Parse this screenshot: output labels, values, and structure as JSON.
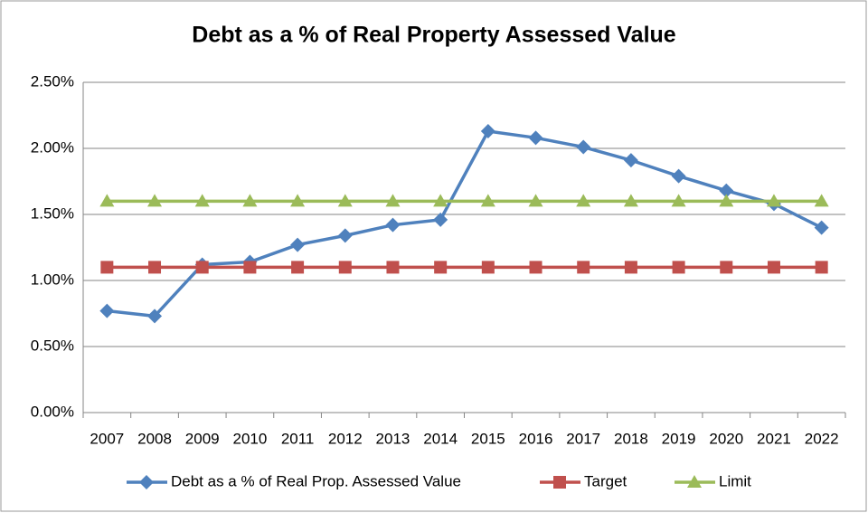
{
  "chart_data": {
    "type": "line",
    "title": "Debt as a % of Real Property Assessed Value",
    "categories": [
      "2007",
      "2008",
      "2009",
      "2010",
      "2011",
      "2012",
      "2013",
      "2014",
      "2015",
      "2016",
      "2017",
      "2018",
      "2019",
      "2020",
      "2021",
      "2022"
    ],
    "series": [
      {
        "name": "Debt as a % of Real Prop. Assessed Value",
        "color": "#4f81bd",
        "marker": "diamond",
        "values": [
          0.77,
          0.73,
          1.12,
          1.14,
          1.27,
          1.34,
          1.42,
          1.46,
          2.13,
          2.08,
          2.01,
          1.91,
          1.79,
          1.68,
          1.58,
          1.4
        ]
      },
      {
        "name": "Target",
        "color": "#c0504d",
        "marker": "square",
        "values": [
          1.1,
          1.1,
          1.1,
          1.1,
          1.1,
          1.1,
          1.1,
          1.1,
          1.1,
          1.1,
          1.1,
          1.1,
          1.1,
          1.1,
          1.1,
          1.1
        ]
      },
      {
        "name": "Limit",
        "color": "#9bbb59",
        "marker": "triangle",
        "values": [
          1.6,
          1.6,
          1.6,
          1.6,
          1.6,
          1.6,
          1.6,
          1.6,
          1.6,
          1.6,
          1.6,
          1.6,
          1.6,
          1.6,
          1.6,
          1.6
        ]
      }
    ],
    "ylim": [
      0,
      2.5
    ],
    "yticks": [
      {
        "value": 0,
        "label": "0.00%"
      },
      {
        "value": 0.5,
        "label": "0.50%"
      },
      {
        "value": 1,
        "label": "1.00%"
      },
      {
        "value": 1.5,
        "label": "1.50%"
      },
      {
        "value": 2,
        "label": "2.00%"
      },
      {
        "value": 2.5,
        "label": "2.50%"
      }
    ],
    "grid": true,
    "legend": "bottom"
  }
}
